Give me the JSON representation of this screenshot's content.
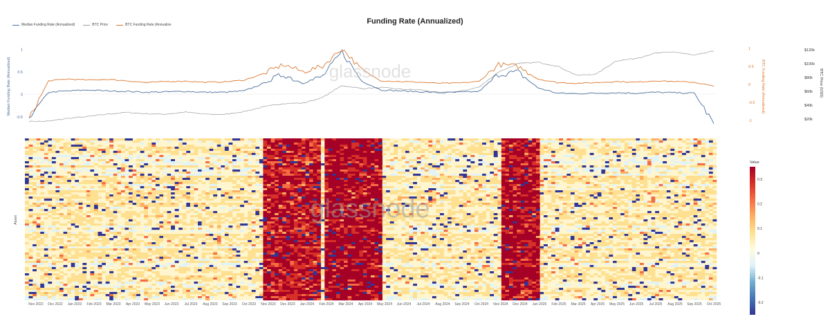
{
  "title": "Funding Rate (Annualized)",
  "watermark": "glassnode",
  "legend": [
    {
      "label": "Median Funding Rate (Annualized)",
      "color": "#4a6f9c"
    },
    {
      "label": "BTC Price",
      "color": "#9a9a9a"
    },
    {
      "label": "BTC Funding Rate (Annualize",
      "color": "#d9772f"
    }
  ],
  "chart_data": [
    {
      "type": "line",
      "title": "Funding Rate (Annualized)",
      "x_range": [
        "2022-11",
        "2025-10"
      ],
      "axes": {
        "left_label": "Median Funding Rate (Annualized)",
        "left_ticks": [
          "1",
          "0.5",
          "0",
          "-0.5"
        ],
        "left_ylim": [
          -0.7,
          1.15
        ],
        "right_label": "BTC Funding Rate (Annualized)",
        "right_ticks": [
          "1",
          "0.5",
          "0",
          "-0.5",
          "-1"
        ],
        "right_ylim": [
          -1.15,
          1.15
        ],
        "price_label": "BTC Price (USD)",
        "price_ticks": [
          "$120k",
          "$100k",
          "$80k",
          "$60k",
          "$40k",
          "$20k"
        ],
        "price_ylim": [
          10000,
          130000
        ]
      },
      "series": [
        {
          "name": "BTC Price",
          "axis": "price",
          "color": "#9a9a9a",
          "x": [
            "2022-11",
            "2022-12",
            "2023-01",
            "2023-02",
            "2023-03",
            "2023-04",
            "2023-05",
            "2023-06",
            "2023-07",
            "2023-08",
            "2023-09",
            "2023-10",
            "2023-11",
            "2023-12",
            "2024-01",
            "2024-02",
            "2024-03",
            "2024-04",
            "2024-05",
            "2024-06",
            "2024-07",
            "2024-08",
            "2024-09",
            "2024-10",
            "2024-11",
            "2024-12",
            "2025-01",
            "2025-02",
            "2025-03",
            "2025-04",
            "2025-05",
            "2025-06",
            "2025-07",
            "2025-08",
            "2025-09",
            "2025-10"
          ],
          "values": [
            16500,
            16800,
            21000,
            23500,
            27000,
            29500,
            27500,
            27000,
            30000,
            27000,
            26500,
            31000,
            37500,
            42500,
            43000,
            51000,
            68500,
            64000,
            65500,
            63000,
            62000,
            58000,
            60000,
            66000,
            88000,
            100000,
            102000,
            96500,
            83000,
            85000,
            104000,
            107500,
            115000,
            117000,
            112000,
            118000
          ]
        },
        {
          "name": "Median Funding Rate (Annualized)",
          "axis": "left",
          "color": "#4a6f9c",
          "x": [
            "2022-11",
            "2022-12",
            "2023-01",
            "2023-02",
            "2023-03",
            "2023-04",
            "2023-05",
            "2023-06",
            "2023-07",
            "2023-08",
            "2023-09",
            "2023-10",
            "2023-11",
            "2023-12",
            "2024-01",
            "2024-02",
            "2024-03",
            "2024-04",
            "2024-05",
            "2024-06",
            "2024-07",
            "2024-08",
            "2024-09",
            "2024-10",
            "2024-11",
            "2024-12",
            "2025-01",
            "2025-02",
            "2025-03",
            "2025-04",
            "2025-05",
            "2025-06",
            "2025-07",
            "2025-08",
            "2025-09",
            "2025-10"
          ],
          "values": [
            -0.5,
            0.05,
            0.08,
            0.1,
            0.08,
            0.07,
            0.05,
            0.06,
            0.07,
            0.05,
            0.05,
            0.08,
            0.25,
            0.45,
            0.25,
            0.4,
            0.95,
            0.3,
            0.1,
            0.08,
            0.06,
            0.04,
            0.05,
            0.07,
            0.45,
            0.5,
            0.15,
            0.03,
            0.02,
            0.03,
            0.04,
            0.03,
            0.05,
            0.04,
            0.03,
            -0.65
          ]
        },
        {
          "name": "BTC Funding Rate (Annualize",
          "axis": "right",
          "color": "#d9772f",
          "x": [
            "2022-11",
            "2022-12",
            "2023-01",
            "2023-02",
            "2023-03",
            "2023-04",
            "2023-05",
            "2023-06",
            "2023-07",
            "2023-08",
            "2023-09",
            "2023-10",
            "2023-11",
            "2023-12",
            "2024-01",
            "2024-02",
            "2024-03",
            "2024-04",
            "2024-05",
            "2024-06",
            "2024-07",
            "2024-08",
            "2024-09",
            "2024-10",
            "2024-11",
            "2024-12",
            "2025-01",
            "2025-02",
            "2025-03",
            "2025-04",
            "2025-05",
            "2025-06",
            "2025-07",
            "2025-08",
            "2025-09",
            "2025-10"
          ],
          "values": [
            -0.95,
            0.1,
            0.15,
            0.12,
            0.14,
            0.1,
            0.05,
            0.08,
            0.09,
            0.06,
            0.07,
            0.12,
            0.3,
            0.55,
            0.35,
            0.5,
            1.0,
            0.4,
            0.1,
            0.08,
            0.06,
            0.03,
            0.04,
            0.08,
            0.55,
            0.5,
            0.15,
            0.05,
            0.03,
            0.05,
            0.08,
            0.06,
            0.1,
            0.08,
            0.06,
            -0.05
          ]
        }
      ]
    },
    {
      "type": "heatmap",
      "xlabel": "",
      "ylabel": "Asset",
      "x_ticks": [
        "Nov 2022",
        "Dec 2022",
        "Jan 2023",
        "Feb 2023",
        "Mar 2023",
        "Apr 2023",
        "May 2023",
        "Jun 2023",
        "Jul 2023",
        "Aug 2023",
        "Sep 2023",
        "Oct 2023",
        "Nov 2023",
        "Dec 2023",
        "Jan 2024",
        "Feb 2024",
        "Mar 2024",
        "Apr 2024",
        "May 2024",
        "Jun 2024",
        "Jul 2024",
        "Aug 2024",
        "Sep 2024",
        "Oct 2024",
        "Nov 2024",
        "Dec 2024",
        "Jan 2025",
        "Feb 2025",
        "Mar 2025",
        "Apr 2025",
        "May 2025",
        "Jun 2025",
        "Jul 2025",
        "Aug 2025",
        "Sep 2025",
        "Oct 2025"
      ],
      "colorbar": {
        "label": "Value",
        "ticks": [
          "0.3",
          "0.2",
          "0.1",
          "0",
          "-0.1",
          "-0.2"
        ],
        "range": [
          -0.25,
          0.35
        ],
        "colors": [
          "#313695",
          "#4575b4",
          "#74add1",
          "#e0f3f8",
          "#fffbe0",
          "#fee090",
          "#fdae61",
          "#f46d43",
          "#d73027",
          "#a50026"
        ]
      },
      "hot_periods": [
        {
          "start": "2023-11",
          "end": "2024-01",
          "level": 0.3
        },
        {
          "start": "2024-02",
          "end": "2024-04",
          "level": 0.35
        },
        {
          "start": "2024-11",
          "end": "2024-12",
          "level": 0.33
        }
      ]
    }
  ]
}
